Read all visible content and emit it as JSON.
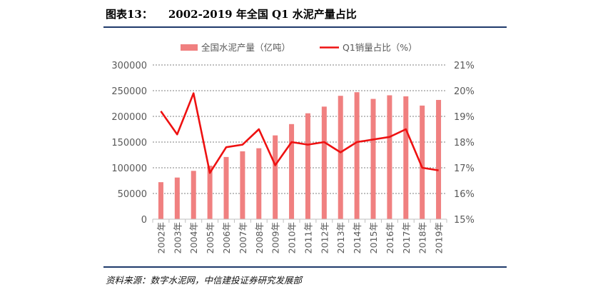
{
  "figure": {
    "label": "图表13：",
    "title": "2002-2019 年全国 Q1 水泥产量占比",
    "source": "资料来源：数字水泥网，中信建投证券研究发展部"
  },
  "chart_data": {
    "type": "bar",
    "categories": [
      "2002年",
      "2003年",
      "2004年",
      "2005年",
      "2006年",
      "2007年",
      "2008年",
      "2009年",
      "2010年",
      "2011年",
      "2012年",
      "2013年",
      "2014年",
      "2015年",
      "2016年",
      "2017年",
      "2018年",
      "2019年"
    ],
    "series": [
      {
        "name": "全国水泥产量（亿吨）",
        "type": "bar",
        "axis": "left",
        "color": "#f08080",
        "values": [
          72000,
          81000,
          94000,
          104000,
          121000,
          132000,
          138000,
          163000,
          185000,
          206000,
          219000,
          240000,
          247000,
          234000,
          241000,
          239000,
          221000,
          232000
        ]
      },
      {
        "name": "Q1销量占比（%）",
        "type": "line",
        "axis": "right",
        "color": "#ee1111",
        "values": [
          19.2,
          18.3,
          19.9,
          16.8,
          17.8,
          17.9,
          18.5,
          17.1,
          18.0,
          17.9,
          18.0,
          17.6,
          18.0,
          18.1,
          18.2,
          18.5,
          17.0,
          16.9
        ]
      }
    ],
    "ylim_left": [
      0,
      300000
    ],
    "yticks_left": [
      "300000",
      "250000",
      "200000",
      "150000",
      "100000",
      "50000",
      "0"
    ],
    "ylim_right": [
      15,
      21
    ],
    "yticks_right": [
      "21%",
      "20%",
      "19%",
      "18%",
      "17%",
      "16%",
      "15%"
    ],
    "grid": "horizontal-dashed",
    "legend_position": "top"
  }
}
